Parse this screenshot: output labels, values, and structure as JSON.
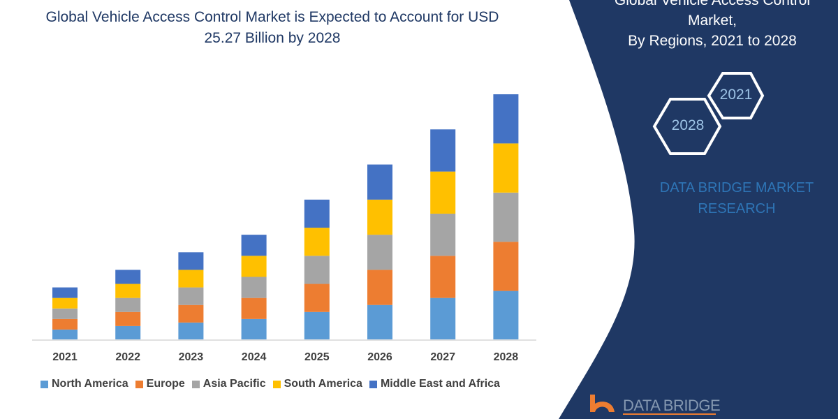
{
  "title": "Global Vehicle Access Control Market is Expected to Account for USD 25.27 Billion by 2028",
  "side_panel": {
    "title_line1": "Global Vehicle Access Control",
    "title_line2": "Market,",
    "title_line3": "By Regions, 2021 to 2028",
    "hex_1": "2021",
    "hex_2": "2028",
    "brand": "DATA BRIDGE MARKET RESEARCH",
    "logo_text": "DATA BRIDGE",
    "panel_color": "#1f3864"
  },
  "chart_data": {
    "type": "bar",
    "stacked": true,
    "categories": [
      "2021",
      "2022",
      "2023",
      "2024",
      "2025",
      "2026",
      "2027",
      "2028"
    ],
    "series": [
      {
        "name": "North America",
        "color": "#5b9bd5",
        "values": [
          1.5,
          2,
          2.5,
          3,
          4,
          5,
          6,
          7
        ]
      },
      {
        "name": "Europe",
        "color": "#ed7d31",
        "values": [
          1.5,
          2,
          2.5,
          3,
          4,
          5,
          6,
          7
        ]
      },
      {
        "name": "Asia Pacific",
        "color": "#a5a5a5",
        "values": [
          1.5,
          2,
          2.5,
          3,
          4,
          5,
          6,
          7
        ]
      },
      {
        "name": "South America",
        "color": "#ffc000",
        "values": [
          1.5,
          2,
          2.5,
          3,
          4,
          5,
          6,
          7
        ]
      },
      {
        "name": "Middle East and Africa",
        "color": "#4472c4",
        "values": [
          1.5,
          2,
          2.5,
          3,
          4,
          5,
          6,
          7
        ]
      }
    ],
    "ylim": [
      0,
      35
    ],
    "grid": false,
    "legend_position": "bottom"
  }
}
